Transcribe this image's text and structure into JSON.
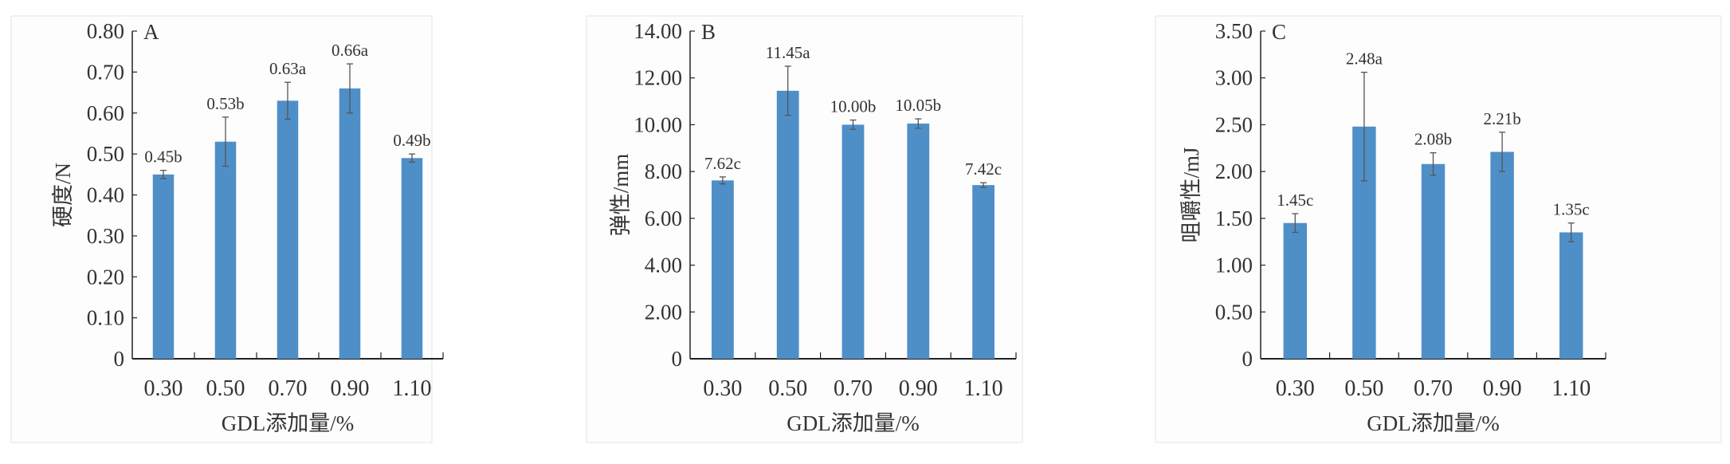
{
  "chart_data": [
    {
      "type": "bar",
      "panel_label": "A",
      "categories": [
        "0.30",
        "0.50",
        "0.70",
        "0.90",
        "1.10"
      ],
      "values": [
        0.45,
        0.53,
        0.63,
        0.66,
        0.49
      ],
      "errors": [
        0.01,
        0.06,
        0.045,
        0.06,
        0.01
      ],
      "data_labels": [
        "0.45b",
        "0.53b",
        "0.63a",
        "0.66a",
        "0.49b"
      ],
      "yticks": [
        "0",
        "0.10",
        "0.20",
        "0.30",
        "0.40",
        "0.50",
        "0.60",
        "0.70",
        "0.80"
      ],
      "ylim": [
        0,
        0.8
      ],
      "xlabel": "GDL添加量/%",
      "ylabel": "硬度/N",
      "grid": false
    },
    {
      "type": "bar",
      "panel_label": "B",
      "categories": [
        "0.30",
        "0.50",
        "0.70",
        "0.90",
        "1.10"
      ],
      "values": [
        7.62,
        11.45,
        10.0,
        10.05,
        7.42
      ],
      "errors": [
        0.15,
        1.05,
        0.2,
        0.2,
        0.1
      ],
      "data_labels": [
        "7.62c",
        "11.45a",
        "10.00b",
        "10.05b",
        "7.42c"
      ],
      "yticks": [
        "0",
        "2.00",
        "4.00",
        "6.00",
        "8.00",
        "10.00",
        "12.00",
        "14.00"
      ],
      "ylim": [
        0,
        14
      ],
      "xlabel": "GDL添加量/%",
      "ylabel": "弹性/mm",
      "grid": false
    },
    {
      "type": "bar",
      "panel_label": "C",
      "categories": [
        "0.30",
        "0.50",
        "0.70",
        "0.90",
        "1.10"
      ],
      "values": [
        1.45,
        2.48,
        2.08,
        2.21,
        1.35
      ],
      "errors": [
        0.1,
        0.58,
        0.12,
        0.21,
        0.1
      ],
      "data_labels": [
        "1.45c",
        "2.48a",
        "2.08b",
        "2.21b",
        "1.35c"
      ],
      "yticks": [
        "0",
        "0.50",
        "1.00",
        "1.50",
        "2.00",
        "2.50",
        "3.00",
        "3.50"
      ],
      "ylim": [
        0,
        3.5
      ],
      "xlabel": "GDL添加量/%",
      "ylabel": "咀嚼性/mJ",
      "grid": false
    }
  ],
  "colors": {
    "bar": "#4f8fc8",
    "axis": "#222222",
    "error": "#555555",
    "frame": "#e4e4e4"
  }
}
